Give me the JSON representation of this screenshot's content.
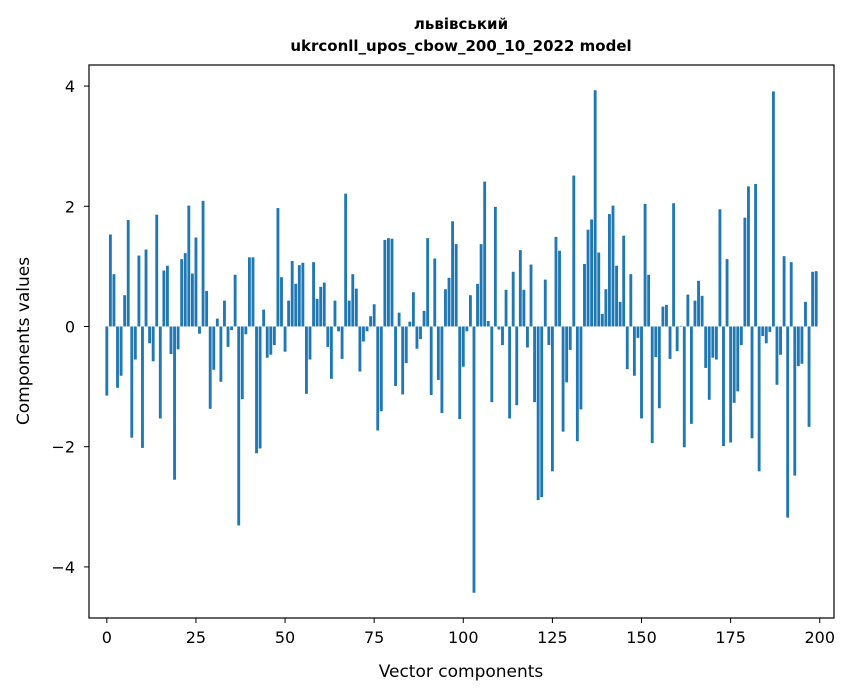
{
  "chart_data": {
    "type": "bar",
    "title_lines": [
      "львівський",
      "ukrconll_upos_cbow_200_10_2022 model"
    ],
    "xlabel": "Vector components",
    "ylabel": "Components values",
    "xlim": [
      -5,
      204
    ],
    "ylim": [
      -4.85,
      4.35
    ],
    "xticks": [
      0,
      25,
      50,
      75,
      100,
      125,
      150,
      175,
      200
    ],
    "yticks": [
      -4,
      -2,
      0,
      2,
      4
    ],
    "ytick_labels": [
      "−4",
      "−2",
      "0",
      "2",
      "4"
    ],
    "bar_color": "#1f77b4",
    "grid": false,
    "values": [
      -1.15,
      1.53,
      0.87,
      -1.02,
      -0.82,
      0.52,
      1.77,
      -1.85,
      -0.55,
      1.18,
      -2.02,
      1.28,
      -0.28,
      -0.58,
      1.86,
      -1.53,
      0.93,
      1.01,
      -0.46,
      -2.55,
      -0.38,
      1.12,
      1.22,
      2.01,
      0.88,
      1.48,
      -0.12,
      2.09,
      0.59,
      -1.37,
      -0.72,
      0.13,
      -0.92,
      0.43,
      -0.34,
      -0.06,
      0.86,
      -3.31,
      -1.21,
      -0.13,
      1.15,
      1.15,
      -2.11,
      -2.03,
      0.28,
      -0.52,
      -0.47,
      -0.31,
      1.97,
      0.82,
      -0.42,
      0.43,
      1.09,
      0.71,
      1.02,
      1.06,
      -1.12,
      -0.55,
      1.07,
      0.46,
      0.66,
      0.73,
      -0.34,
      -0.87,
      0.43,
      -0.08,
      -0.54,
      2.21,
      0.43,
      0.87,
      0.63,
      -0.75,
      -0.25,
      -0.08,
      0.17,
      0.37,
      -1.73,
      -1.41,
      1.44,
      1.47,
      1.46,
      -0.99,
      0.23,
      -1.13,
      -0.61,
      0.08,
      0.57,
      -0.37,
      -0.21,
      0.26,
      1.47,
      -1.14,
      1.13,
      -0.89,
      -1.44,
      0.62,
      0.81,
      1.75,
      1.37,
      -1.54,
      -0.67,
      -0.08,
      0.52,
      -4.43,
      0.71,
      1.37,
      2.41,
      0.09,
      -1.26,
      1.99,
      -0.05,
      -0.31,
      0.61,
      -1.53,
      0.91,
      -1.31,
      1.27,
      0.61,
      -0.35,
      1.03,
      -1.26,
      -2.89,
      -2.84,
      0.78,
      -0.31,
      -2.41,
      1.49,
      1.26,
      -1.75,
      -0.93,
      -0.39,
      2.51,
      -1.91,
      -1.38,
      1.04,
      1.61,
      1.78,
      3.93,
      1.23,
      0.21,
      0.62,
      1.87,
      2.01,
      1.01,
      0.41,
      1.51,
      -0.71,
      0.87,
      -0.82,
      -0.19,
      -1.53,
      2.04,
      0.86,
      -1.94,
      -0.51,
      -1.36,
      0.33,
      0.36,
      -0.54,
      2.05,
      -0.41,
      0.01,
      -2.01,
      0.53,
      -1.62,
      0.43,
      0.76,
      0.51,
      -0.69,
      -1.22,
      -0.52,
      -0.55,
      1.95,
      -1.99,
      1.12,
      -1.93,
      -1.27,
      -1.08,
      -0.31,
      1.81,
      2.33,
      -1.86,
      2.37,
      -2.41,
      -0.16,
      -0.28,
      -0.09,
      3.91,
      -0.97,
      -0.47,
      1.17,
      -3.18,
      1.07,
      -2.48,
      -0.66,
      -0.62,
      0.41,
      -1.67,
      0.91,
      0.92
    ]
  }
}
